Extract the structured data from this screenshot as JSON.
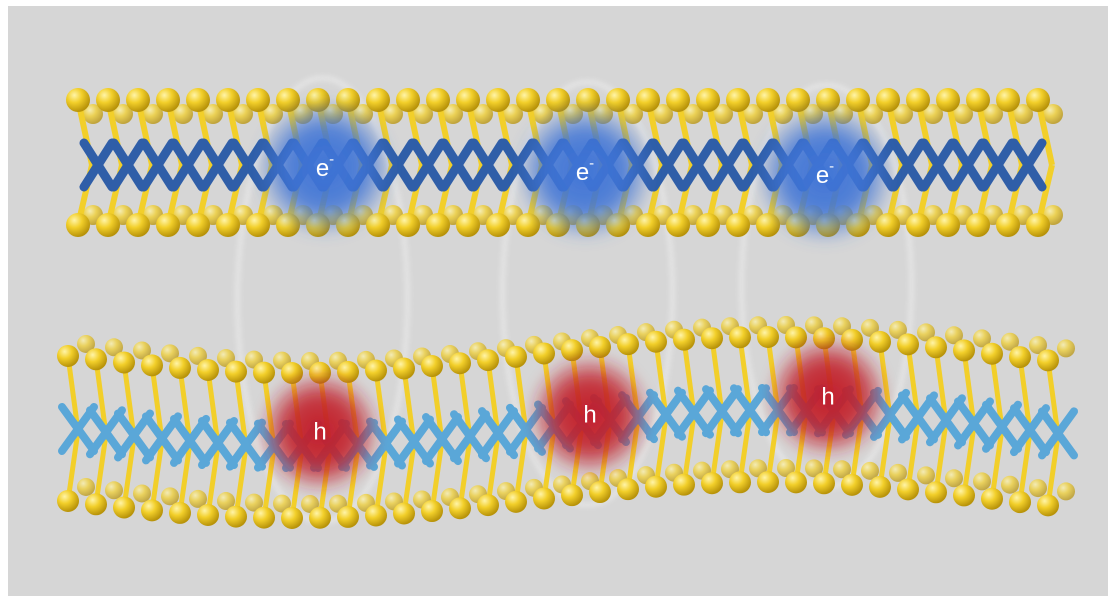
{
  "diagram": {
    "electron_label": "e",
    "electron_charge": "-",
    "hole_label": "h",
    "colors": {
      "background": "#d6d6d6",
      "chalcogen_atom": "#f2cf2a",
      "chalcogen_atom_dark": "#b8930a",
      "metal_top_layer": "#2f5ea8",
      "metal_bottom_layer": "#5aa7d8",
      "electron_cloud": "#3f74d6",
      "hole_cloud": "#c21f2a",
      "exciton_ring": "#f4f4f4"
    },
    "excitons": [
      {
        "electron": "e-",
        "hole": "h"
      },
      {
        "electron": "e-",
        "hole": "h"
      },
      {
        "electron": "e-",
        "hole": "h"
      }
    ]
  }
}
